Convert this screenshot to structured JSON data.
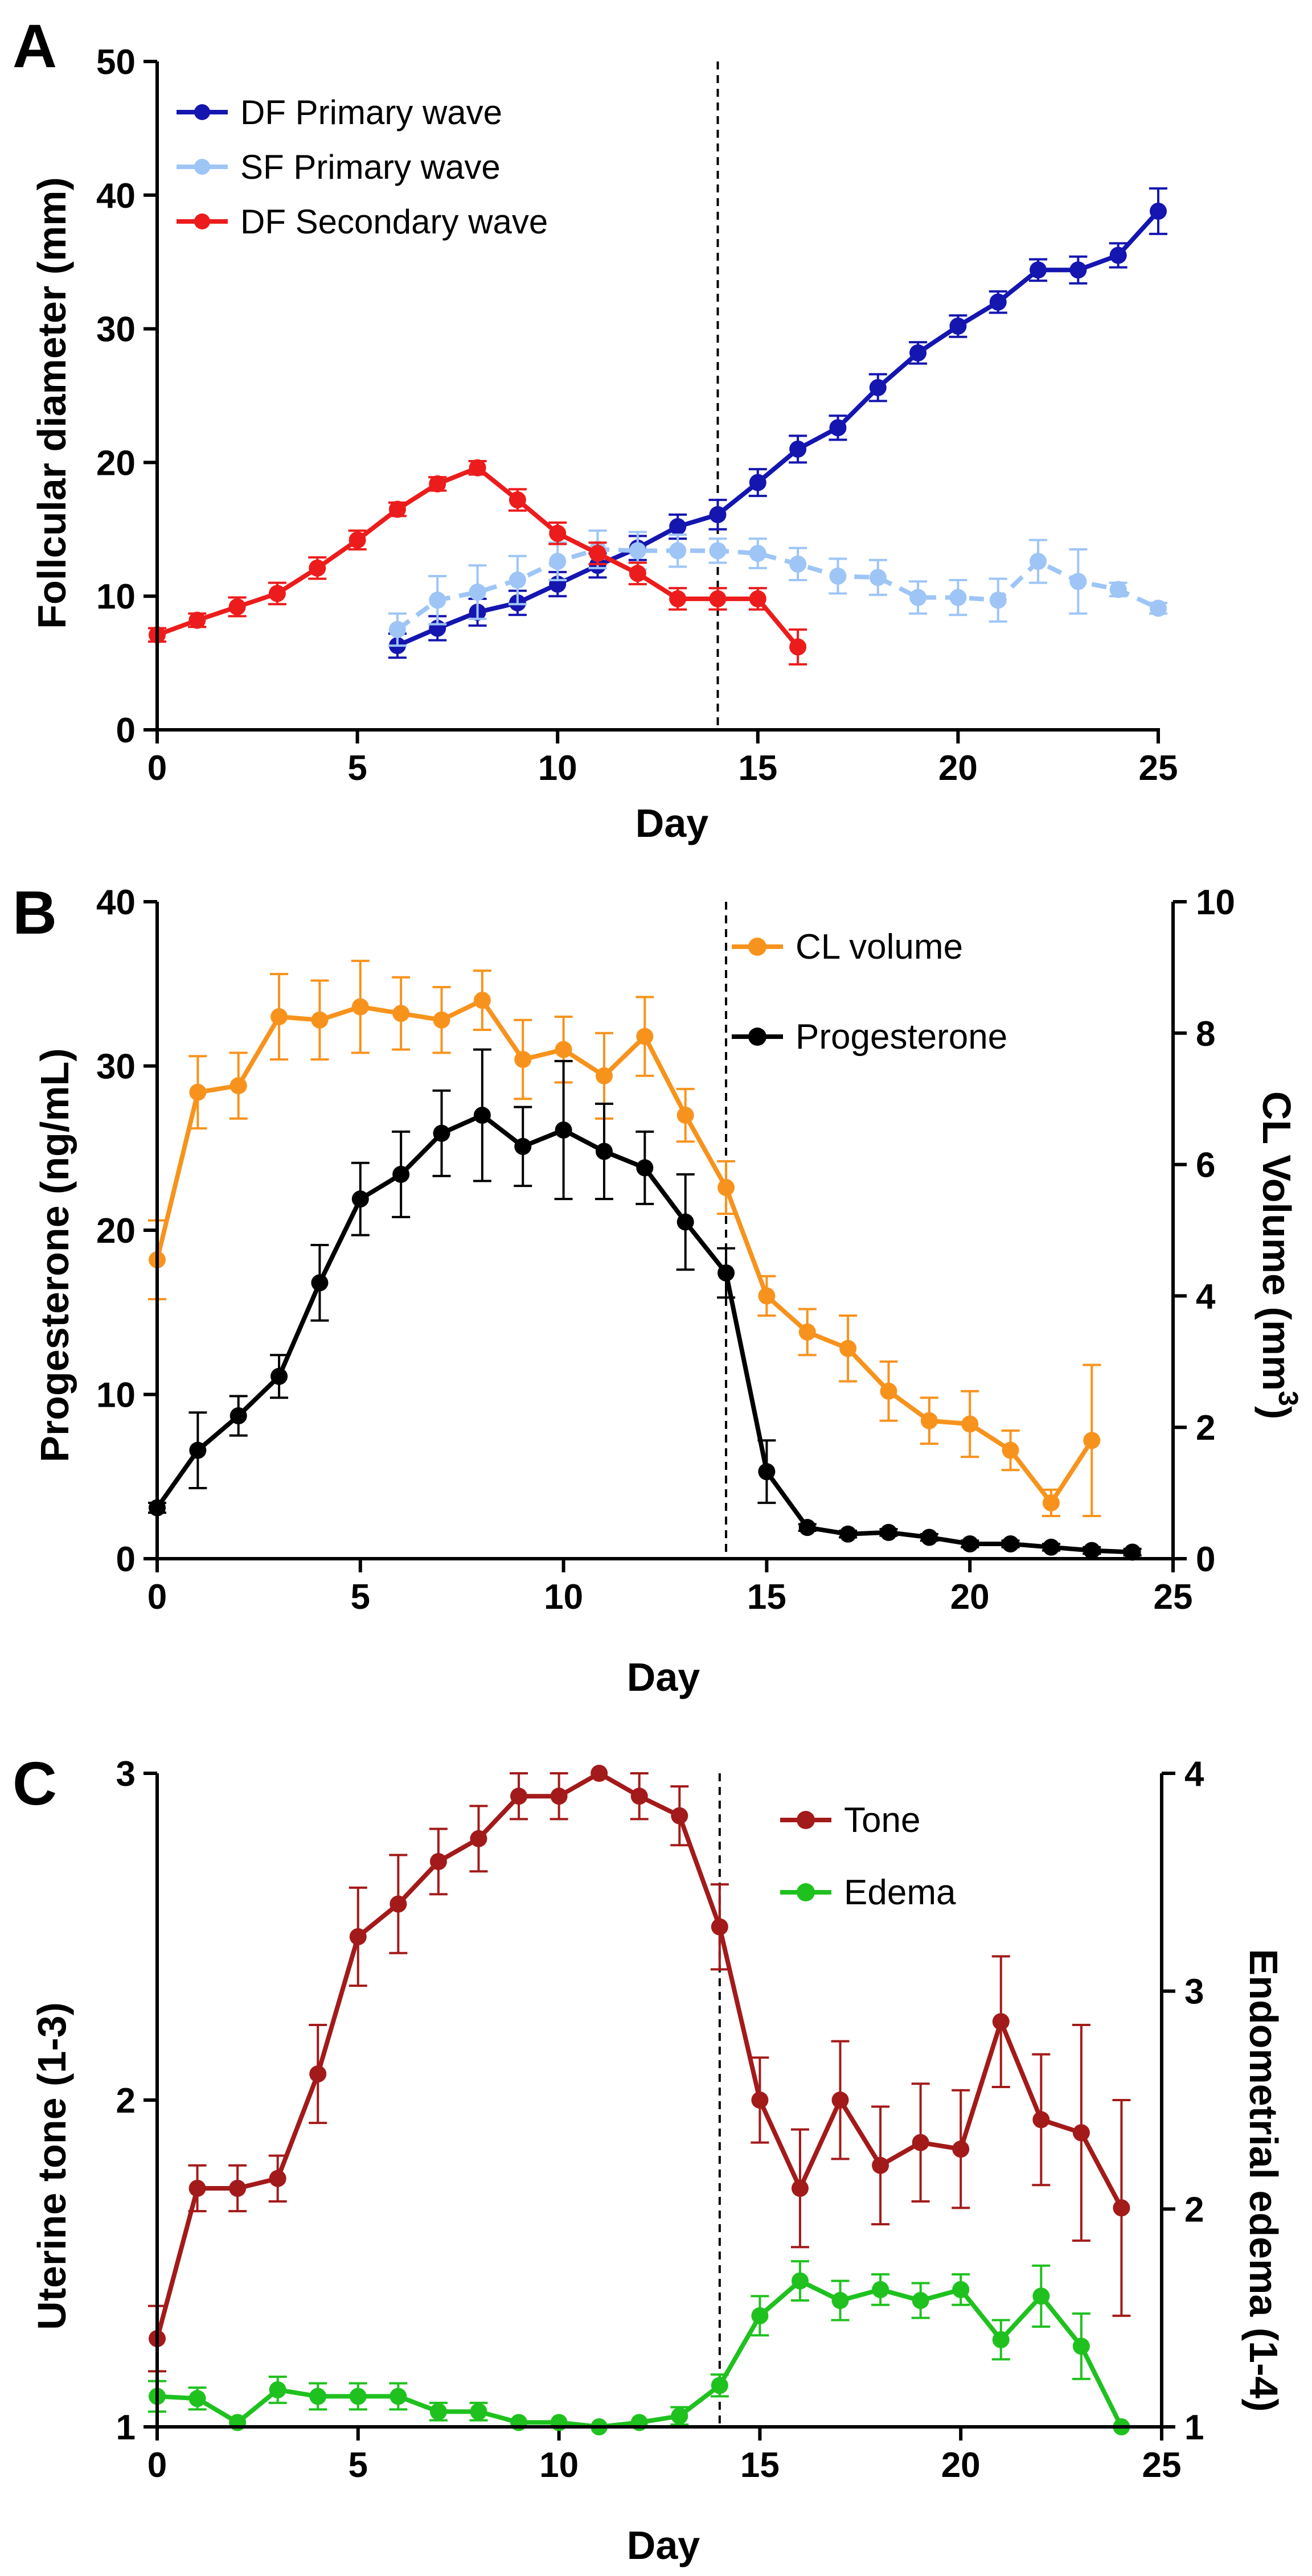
{
  "chart_data": [
    {
      "panel_label": "A",
      "type": "line",
      "xlabel": "Day",
      "ylabel": "Follcular diameter (mm)",
      "xlim": [
        0,
        25
      ],
      "ylim": [
        0,
        50
      ],
      "xticks": [
        0,
        5,
        10,
        15,
        20,
        25
      ],
      "yticks": [
        0,
        10,
        20,
        30,
        40,
        50
      ],
      "vline_x": 14,
      "legend_position": "top-left",
      "series": [
        {
          "name": "DF Primary wave",
          "color": "#1515b0",
          "dashed": false,
          "x": [
            6,
            7,
            8,
            9,
            10,
            11,
            12,
            13,
            14,
            15,
            16,
            17,
            18,
            19,
            20,
            21,
            22,
            23,
            24,
            25
          ],
          "y": [
            6.3,
            7.6,
            8.8,
            9.5,
            10.9,
            12.3,
            13.6,
            15.2,
            16.1,
            18.5,
            21,
            22.6,
            25.6,
            28.2,
            30.2,
            32,
            34.4,
            34.4,
            35.5,
            38.8
          ],
          "err": [
            0.9,
            0.9,
            1.0,
            0.9,
            0.9,
            0.9,
            0.9,
            0.9,
            1.1,
            1.0,
            1.0,
            0.9,
            1.0,
            0.8,
            0.8,
            0.8,
            0.8,
            1.0,
            0.9,
            1.7
          ]
        },
        {
          "name": "SF Primary wave",
          "color": "#9ec5f6",
          "dashed": true,
          "x": [
            6,
            7,
            8,
            9,
            10,
            11,
            12,
            13,
            14,
            15,
            16,
            17,
            18,
            19,
            20,
            21,
            22,
            23,
            24,
            25
          ],
          "y": [
            7.5,
            9.7,
            10.3,
            11.2,
            12.6,
            13.5,
            13.4,
            13.4,
            13.4,
            13.2,
            12.4,
            11.5,
            11.4,
            9.9,
            9.9,
            9.7,
            12.6,
            11.1,
            10.5,
            9.1
          ],
          "err": [
            1.2,
            1.8,
            2.0,
            1.8,
            1.4,
            1.4,
            1.4,
            1.2,
            0.9,
            1.1,
            1.2,
            1.3,
            1.3,
            1.2,
            1.3,
            1.6,
            1.6,
            2.4,
            0.5,
            0.4
          ]
        },
        {
          "name": "DF Secondary wave",
          "color": "#ec1c1c",
          "dashed": false,
          "x": [
            0,
            1,
            2,
            3,
            4,
            5,
            6,
            7,
            8,
            9,
            10,
            11,
            12,
            13,
            14,
            15,
            16
          ],
          "y": [
            7.1,
            8.2,
            9.2,
            10.2,
            12.1,
            14.2,
            16.5,
            18.4,
            19.6,
            17.2,
            14.7,
            13.2,
            11.7,
            9.8,
            9.8,
            9.8,
            6.2
          ],
          "err": [
            0.5,
            0.5,
            0.7,
            0.8,
            0.8,
            0.7,
            0.5,
            0.5,
            0.5,
            0.8,
            0.8,
            0.8,
            0.8,
            0.8,
            0.8,
            0.8,
            1.3
          ]
        }
      ]
    },
    {
      "panel_label": "B",
      "type": "line",
      "xlabel": "Day",
      "ylabel": "Progesterone (ng/mL)",
      "ylabel_right": "CL Volume (mm",
      "ylabel_right_sup": "3",
      "ylabel_right_close": ")",
      "xlim": [
        0,
        25
      ],
      "ylim": [
        0,
        40
      ],
      "ylim_right": [
        0,
        10
      ],
      "xticks": [
        0,
        5,
        10,
        15,
        20,
        25
      ],
      "yticks": [
        0,
        10,
        20,
        30,
        40
      ],
      "yticks_right": [
        0,
        2,
        4,
        6,
        8,
        10
      ],
      "vline_x": 14,
      "legend_position": "top-right",
      "series": [
        {
          "name": "CL volume",
          "color": "#f7931d",
          "axis": "right",
          "x": [
            0,
            1,
            2,
            3,
            4,
            5,
            6,
            7,
            8,
            9,
            10,
            11,
            12,
            13,
            14,
            15,
            16,
            17,
            18,
            19,
            20,
            21,
            22,
            23
          ],
          "y": [
            4.55,
            7.1,
            7.2,
            8.25,
            8.2,
            8.4,
            8.3,
            8.2,
            8.5,
            7.6,
            7.75,
            7.35,
            7.95,
            6.75,
            5.65,
            4.0,
            3.45,
            3.2,
            2.55,
            2.1,
            2.05,
            1.65,
            0.85,
            1.8
          ],
          "err": [
            0.6,
            0.55,
            0.5,
            0.65,
            0.6,
            0.7,
            0.55,
            0.5,
            0.45,
            0.6,
            0.5,
            0.65,
            0.6,
            0.4,
            0.4,
            0.3,
            0.35,
            0.5,
            0.45,
            0.35,
            0.5,
            0.3,
            0.2,
            1.15
          ]
        },
        {
          "name": "Progesterone",
          "color": "#000000",
          "axis": "left",
          "x": [
            0,
            1,
            2,
            3,
            4,
            5,
            6,
            7,
            8,
            9,
            10,
            11,
            12,
            13,
            14,
            15,
            16,
            17,
            18,
            19,
            20,
            21,
            22,
            23,
            24
          ],
          "y": [
            3.1,
            6.6,
            8.7,
            11.1,
            16.8,
            21.9,
            23.4,
            25.9,
            27,
            25.1,
            26.1,
            24.8,
            23.8,
            20.5,
            17.4,
            5.3,
            1.9,
            1.5,
            1.6,
            1.3,
            0.9,
            0.9,
            0.7,
            0.5,
            0.4
          ],
          "err": [
            0.3,
            2.3,
            1.2,
            1.3,
            2.3,
            2.2,
            2.6,
            2.6,
            4.0,
            2.4,
            4.2,
            2.9,
            2.2,
            2.9,
            1.5,
            1.9,
            0.2,
            0.2,
            0.2,
            0.2,
            0.2,
            0.2,
            0.2,
            0.2,
            0.2
          ]
        }
      ]
    },
    {
      "panel_label": "C",
      "type": "line",
      "xlabel": "Day",
      "ylabel": "Uterine tone (1-3)",
      "ylabel_right": "Endometrial edema (1-4)",
      "xlim": [
        0,
        25
      ],
      "ylim": [
        1,
        3
      ],
      "ylim_right": [
        1,
        4
      ],
      "xticks": [
        0,
        5,
        10,
        15,
        20,
        25
      ],
      "yticks": [
        1,
        2,
        3
      ],
      "yticks_right": [
        1,
        2,
        3,
        4
      ],
      "vline_x": 14,
      "legend_position": "top-right",
      "series": [
        {
          "name": "Tone",
          "color": "#a31a1a",
          "axis": "left",
          "x": [
            0,
            1,
            2,
            3,
            4,
            5,
            6,
            7,
            8,
            9,
            10,
            11,
            12,
            13,
            14,
            15,
            16,
            17,
            18,
            19,
            20,
            21,
            22,
            23,
            24
          ],
          "y": [
            1.27,
            1.73,
            1.73,
            1.76,
            2.08,
            2.5,
            2.6,
            2.73,
            2.8,
            2.93,
            2.93,
            3.0,
            2.93,
            2.87,
            2.53,
            2.0,
            1.73,
            2.0,
            1.8,
            1.87,
            1.85,
            2.24,
            1.94,
            1.9,
            1.67
          ],
          "err": [
            0.1,
            0.07,
            0.07,
            0.07,
            0.15,
            0.15,
            0.15,
            0.1,
            0.1,
            0.07,
            0.07,
            0.0,
            0.07,
            0.09,
            0.13,
            0.13,
            0.18,
            0.18,
            0.18,
            0.18,
            0.18,
            0.2,
            0.2,
            0.33,
            0.33
          ]
        },
        {
          "name": "Edema",
          "color": "#1fc11f",
          "axis": "right",
          "x": [
            0,
            1,
            2,
            3,
            4,
            5,
            6,
            7,
            8,
            9,
            10,
            11,
            12,
            13,
            14,
            15,
            16,
            17,
            18,
            19,
            20,
            21,
            22,
            23,
            24
          ],
          "y": [
            1.14,
            1.13,
            1.02,
            1.17,
            1.14,
            1.14,
            1.14,
            1.07,
            1.07,
            1.02,
            1.02,
            1.0,
            1.02,
            1.05,
            1.19,
            1.51,
            1.67,
            1.58,
            1.63,
            1.58,
            1.63,
            1.4,
            1.6,
            1.37,
            1.0
          ],
          "err": [
            0.07,
            0.05,
            0.0,
            0.06,
            0.06,
            0.06,
            0.06,
            0.04,
            0.04,
            0.0,
            0.0,
            0.0,
            0.0,
            0.04,
            0.05,
            0.09,
            0.09,
            0.09,
            0.07,
            0.08,
            0.07,
            0.09,
            0.14,
            0.15,
            0.0
          ]
        }
      ]
    }
  ]
}
